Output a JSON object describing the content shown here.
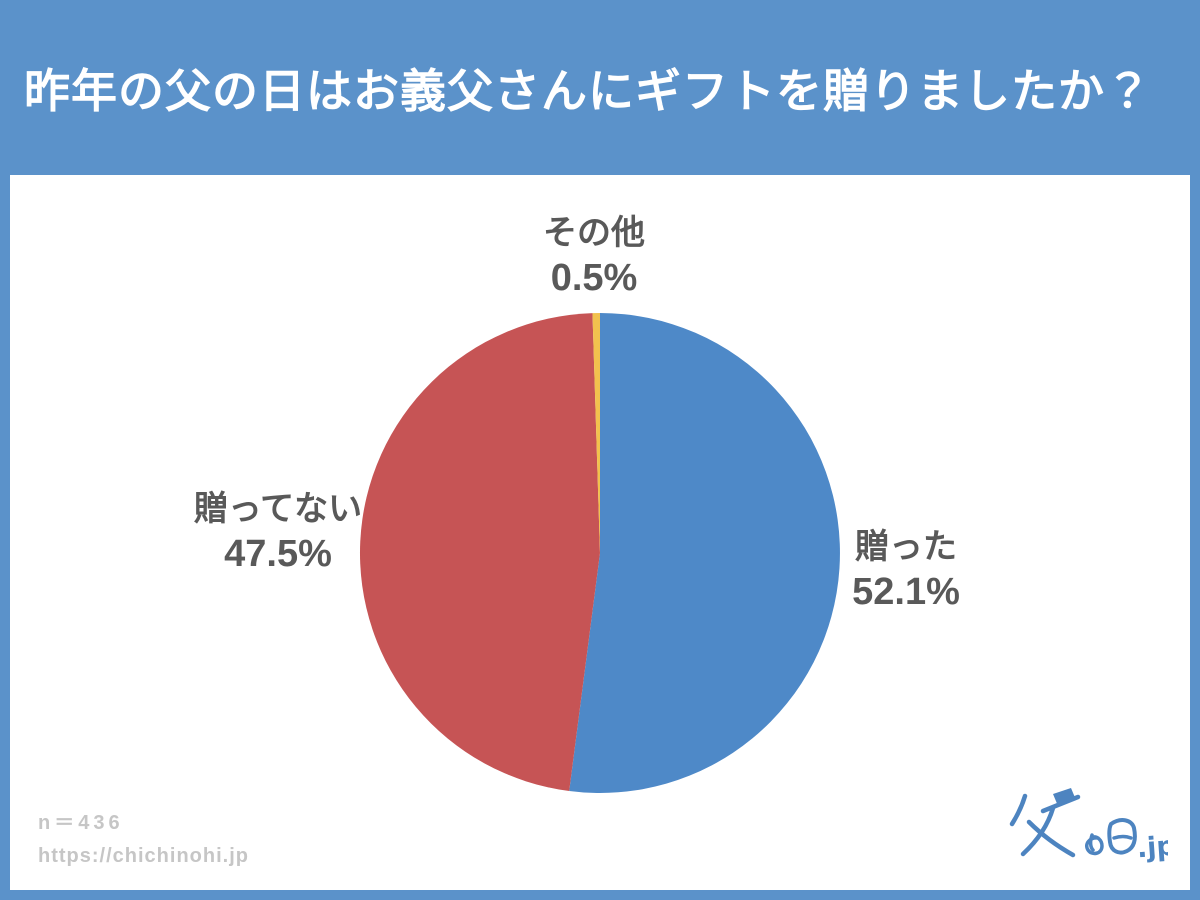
{
  "header": {
    "title": "昨年の父の日はお義父さんにギフトを贈りましたか？"
  },
  "chart_data": {
    "type": "pie",
    "title": "昨年の父の日はお義父さんにギフトを贈りましたか？",
    "start_angle_deg": -90,
    "direction": "clockwise",
    "unit": "%",
    "legend_position": "outside-labels",
    "slices": [
      {
        "id": "gave",
        "label": "贈った",
        "value": 52.1,
        "pct_label": "52.1%",
        "color": "#4E89C8"
      },
      {
        "id": "not-given",
        "label": "贈ってない",
        "value": 47.5,
        "pct_label": "47.5%",
        "color": "#C65455"
      },
      {
        "id": "other",
        "label": "その他",
        "value": 0.5,
        "pct_label": "0.5%",
        "color": "#F2C14E"
      }
    ]
  },
  "footer": {
    "sample_size": "n＝436",
    "url": "https://chichinohi.jp"
  },
  "logo": {
    "text": "父の日.jp",
    "suffix": ".jp"
  },
  "colors": {
    "background": "#5B92CA",
    "card": "#FFFFFF",
    "title_text": "#FFFFFF",
    "label_text": "#595959",
    "footer_text": "#C6C6C6",
    "logo_blue": "#4D84C0"
  }
}
